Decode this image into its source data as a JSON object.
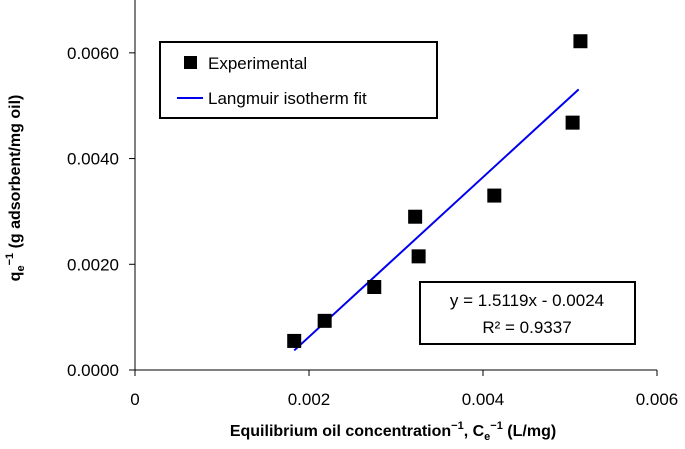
{
  "chart_data": {
    "type": "scatter",
    "title": "",
    "xlabel": "Equilibrium oil concentration⁻¹, Cₑ⁻¹ (L/mg)",
    "xlabel_parts": {
      "main": "Equilibrium oil concentration",
      "sup1": "−1",
      "mid": ", C",
      "sub": "e",
      "sup2": "−1",
      "end": " (L/mg)"
    },
    "ylabel": "qₑ⁻¹ (g adsorbent/mg oil)",
    "ylabel_parts": {
      "main": "q",
      "sub": "e",
      "sup": "−1",
      "end": " (g adsorbent/mg oil)"
    },
    "xlim": [
      0,
      0.006
    ],
    "ylim": [
      0,
      0.007
    ],
    "x_ticks": [
      0,
      0.002,
      0.004,
      0.006
    ],
    "x_tick_labels": [
      "0",
      "0.002",
      "0.004",
      "0.006"
    ],
    "y_ticks": [
      0,
      0.002,
      0.004,
      0.006
    ],
    "y_tick_labels": [
      "0.0000",
      "0.0020",
      "0.0040",
      "0.0060"
    ],
    "grid": false,
    "legend_position": "top-left",
    "series": [
      {
        "name": "Experimental",
        "kind": "scatter",
        "marker": "square",
        "color": "#000000",
        "x": [
          0.00183,
          0.00218,
          0.00275,
          0.00322,
          0.00326,
          0.00413,
          0.00503,
          0.00512
        ],
        "y": [
          0.00055,
          0.00093,
          0.00157,
          0.0029,
          0.00215,
          0.0033,
          0.00468,
          0.00622
        ]
      },
      {
        "name": "Langmuir isotherm fit",
        "kind": "line",
        "color": "#0000ee",
        "x": [
          0.00183,
          0.0051
        ],
        "y": [
          0.00037,
          0.00531
        ]
      }
    ],
    "annotation": {
      "equation": "y = 1.5119x - 0.0024",
      "r2": "R² = 0.9337"
    }
  }
}
